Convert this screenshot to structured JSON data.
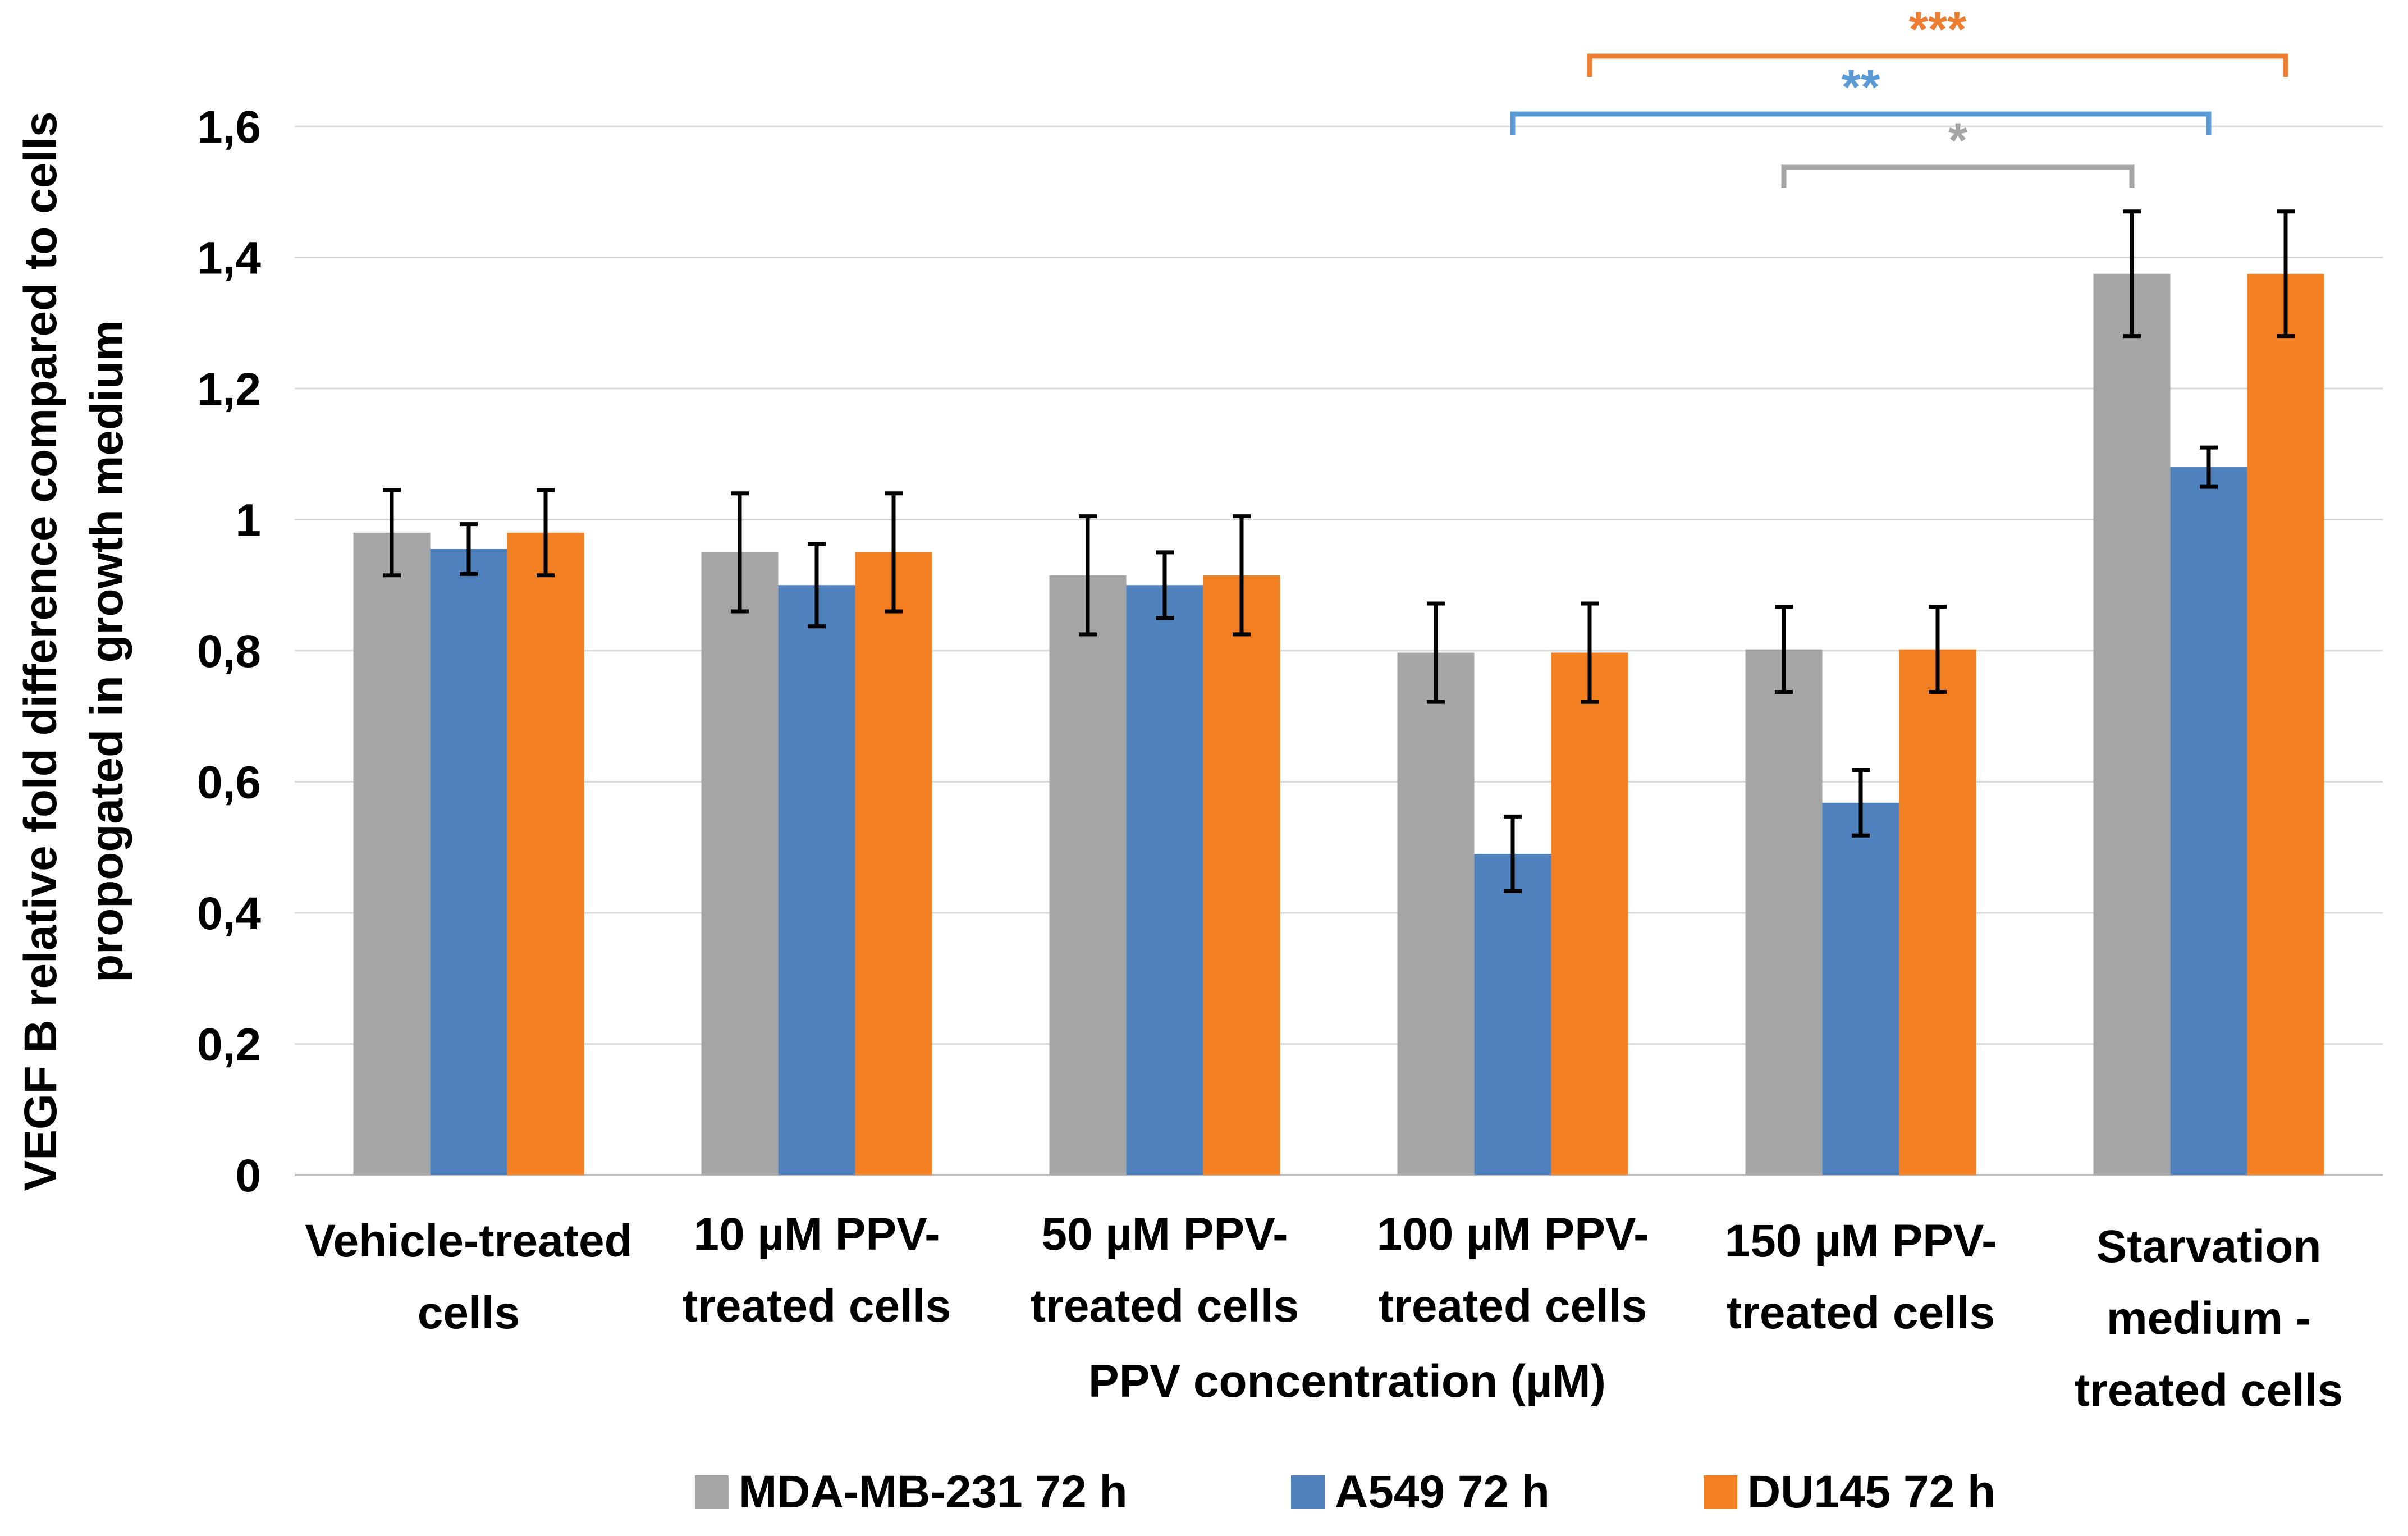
{
  "chart_data": {
    "type": "bar",
    "ylabel_lines": [
      "VEGF B relative fold difference compared to cells",
      "propogated in growth medium"
    ],
    "xlabel": "PPV concentration (µM)",
    "ylim": [
      0,
      1.6
    ],
    "yticks": [
      {
        "value": 0,
        "label": "0"
      },
      {
        "value": 0.2,
        "label": "0,2"
      },
      {
        "value": 0.4,
        "label": "0,4"
      },
      {
        "value": 0.6,
        "label": "0,6"
      },
      {
        "value": 0.8,
        "label": "0,8"
      },
      {
        "value": 1.0,
        "label": "1"
      },
      {
        "value": 1.2,
        "label": "1,2"
      },
      {
        "value": 1.4,
        "label": "1,4"
      },
      {
        "value": 1.6,
        "label": "1,6"
      }
    ],
    "gridlines": true,
    "legend_position": "bottom",
    "categories": [
      {
        "lines": [
          "Vehicle-treated",
          "cells"
        ]
      },
      {
        "lines": [
          "10 µM PPV-",
          "treated cells"
        ]
      },
      {
        "lines": [
          "50 µM PPV-",
          "treated cells"
        ]
      },
      {
        "lines": [
          "100 µM PPV-",
          "treated cells"
        ]
      },
      {
        "lines": [
          "150 µM PPV-",
          "treated cells"
        ]
      },
      {
        "lines": [
          "Starvation",
          "medium -",
          "treated cells"
        ]
      }
    ],
    "series": [
      {
        "name": "MDA-MB-231 72 h",
        "color": "#a5a5a5",
        "values": [
          0.98,
          0.95,
          0.915,
          0.797,
          0.802,
          1.375
        ],
        "errors": [
          0.065,
          0.09,
          0.09,
          0.075,
          0.065,
          0.095
        ]
      },
      {
        "name": "A549 72 h",
        "color": "#4f81bd",
        "values": [
          0.955,
          0.9,
          0.9,
          0.49,
          0.568,
          1.08
        ],
        "errors": [
          0.038,
          0.063,
          0.05,
          0.057,
          0.05,
          0.03
        ]
      },
      {
        "name": "DU145 72 h",
        "color": "#f28022",
        "values": [
          0.98,
          0.95,
          0.915,
          0.797,
          0.802,
          1.375
        ],
        "errors": [
          0.065,
          0.09,
          0.09,
          0.075,
          0.065,
          0.095
        ]
      }
    ],
    "significance": [
      {
        "label": "***",
        "color": "#ed7d31",
        "from_category": 3,
        "to_category": 5,
        "from_series": 2,
        "to_series": 2
      },
      {
        "label": "**",
        "color": "#5b9bd5",
        "from_category": 3,
        "to_category": 5,
        "from_series": 1,
        "to_series": 1
      },
      {
        "label": "*",
        "color": "#a5a5a5",
        "from_category": 4,
        "to_category": 5,
        "from_series": 0,
        "to_series": 0
      }
    ]
  }
}
